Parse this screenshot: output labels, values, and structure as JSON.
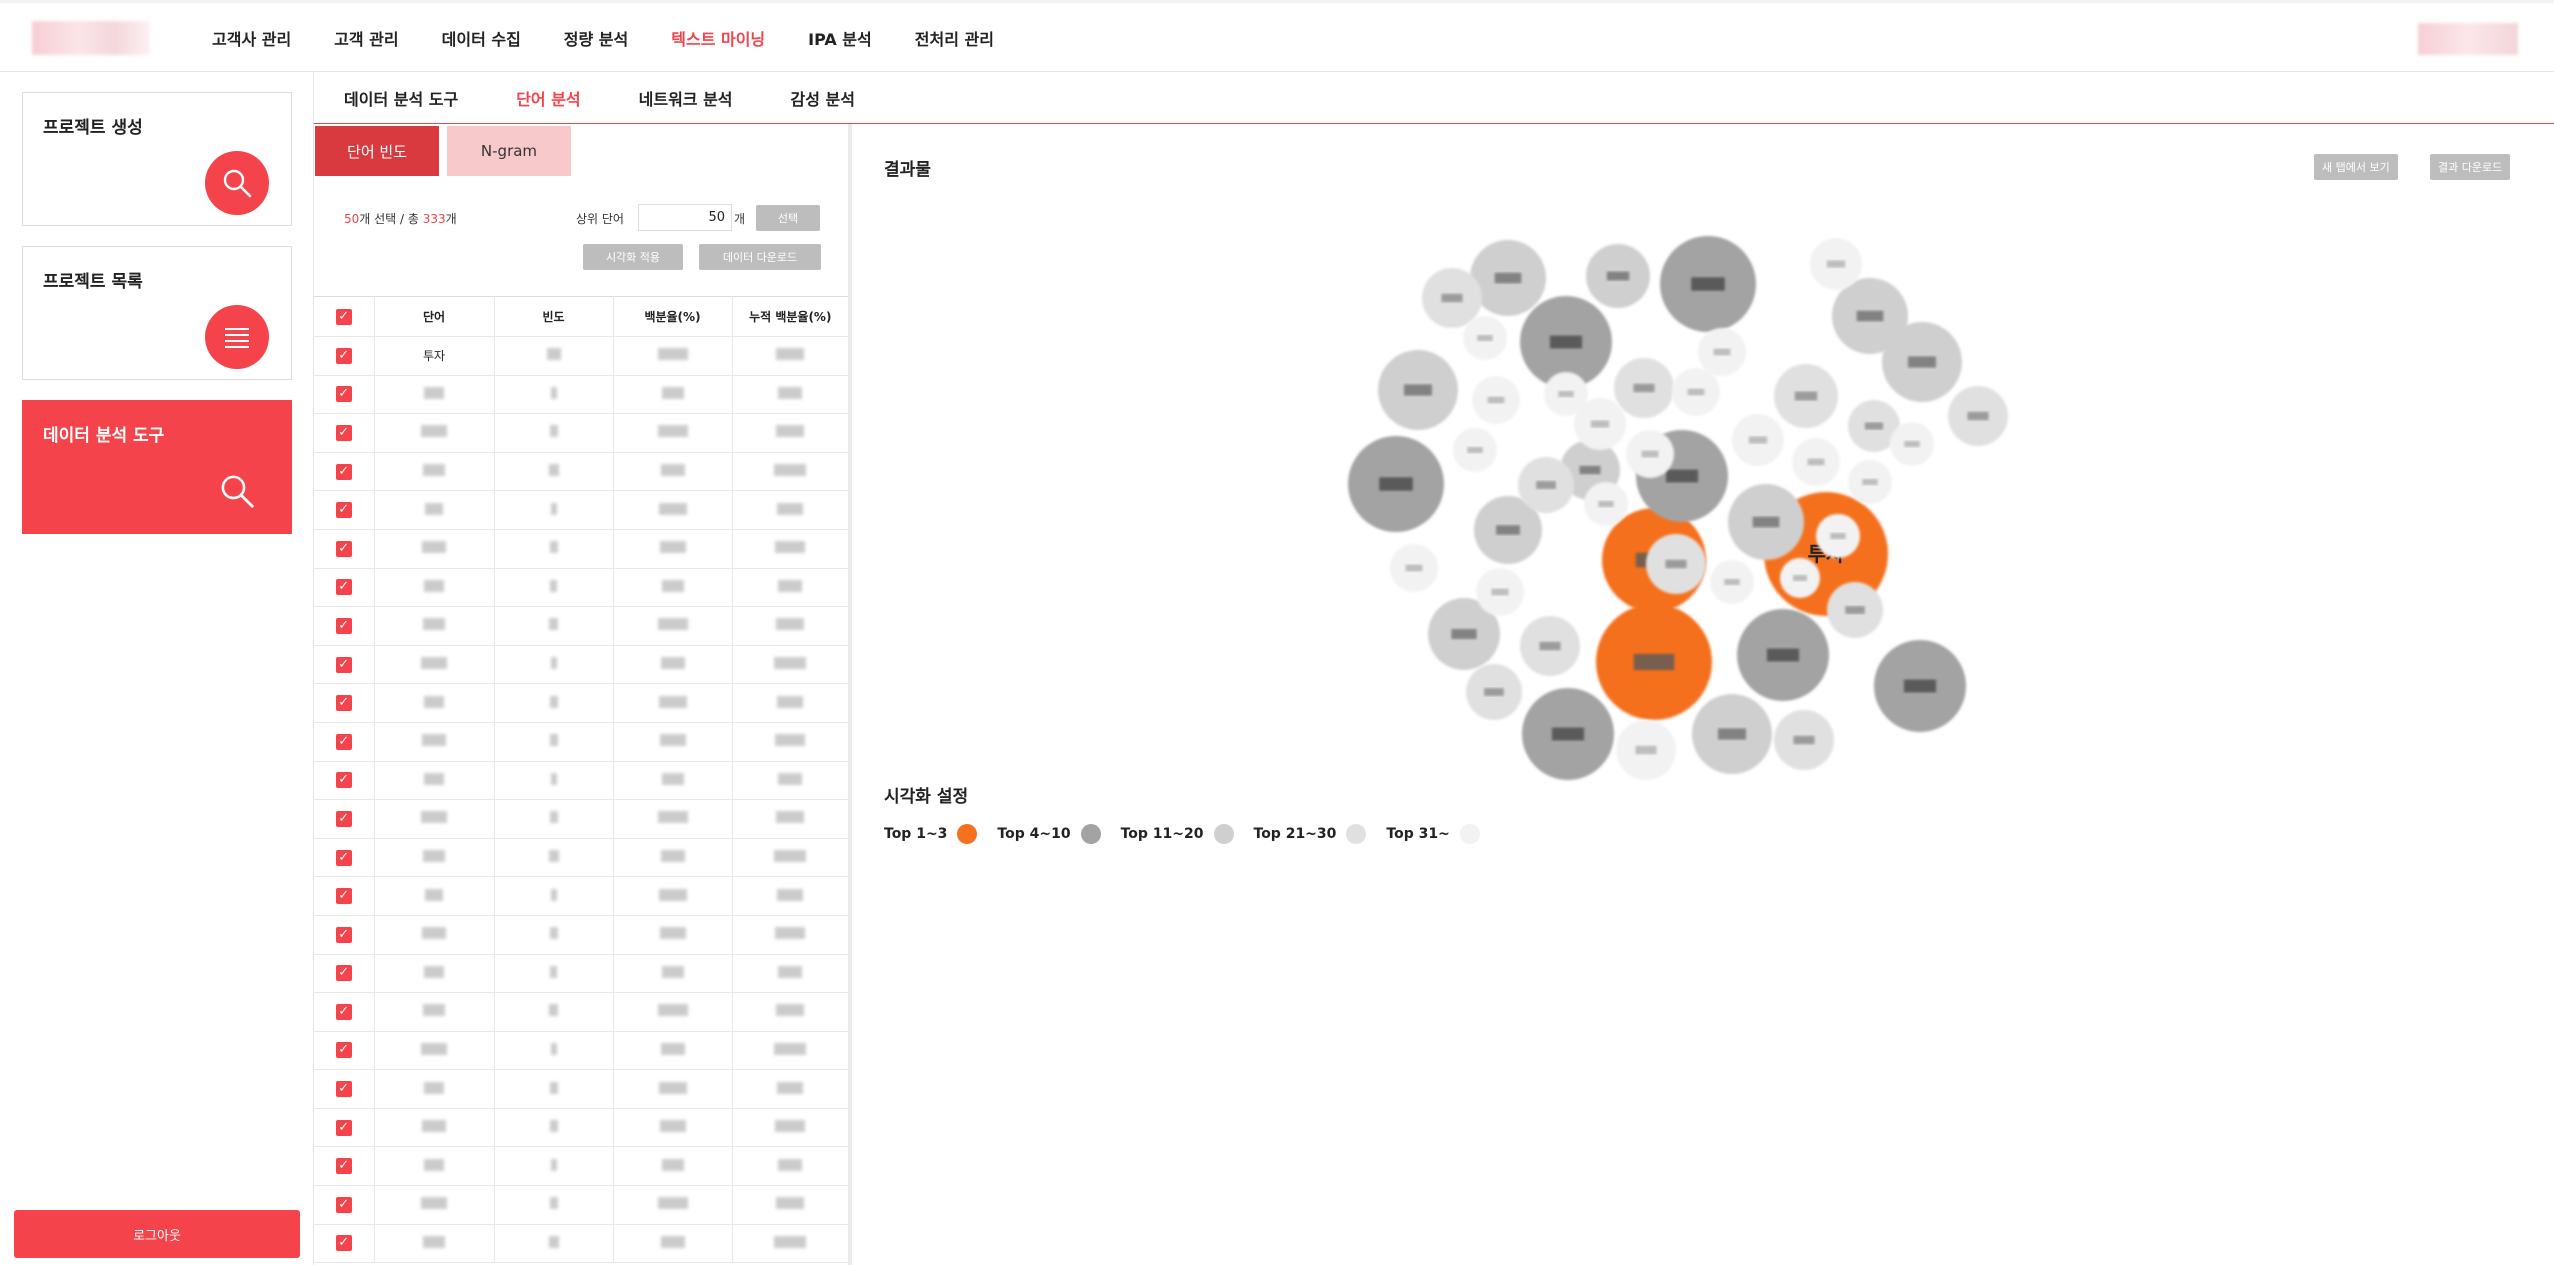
{
  "nav": {
    "items": [
      {
        "label": "고객사 관리",
        "active": false
      },
      {
        "label": "고객 관리",
        "active": false
      },
      {
        "label": "데이터 수집",
        "active": false
      },
      {
        "label": "정량 분석",
        "active": false
      },
      {
        "label": "텍스트 마이닝",
        "active": true
      },
      {
        "label": "IPA 분석",
        "active": false
      },
      {
        "label": "전처리 관리",
        "active": false
      }
    ]
  },
  "sidebar": {
    "cards": [
      {
        "label": "프로젝트 생성",
        "icon": "search-icon"
      },
      {
        "label": "프로젝트 목록",
        "icon": "list-icon"
      },
      {
        "label": "데이터 분석 도구",
        "icon": "search-icon",
        "active": true
      }
    ],
    "logout_label": "로그아웃"
  },
  "subtabs": [
    {
      "label": "데이터 분석 도구",
      "active": false
    },
    {
      "label": "단어 분석",
      "active": true
    },
    {
      "label": "네트워크 분석",
      "active": false
    },
    {
      "label": "감성 분석",
      "active": false
    }
  ],
  "panel": {
    "mode_active": "단어 빈도",
    "mode_inactive": "N-gram",
    "selected_count": "50",
    "selected_suffix": "개 선택 / 총 ",
    "total_count": "333",
    "total_suffix": "개",
    "top_label": "상위 단어",
    "top_value": "50",
    "top_unit": "개",
    "select_button": "선택",
    "apply_button": "시각화 적용",
    "download_button": "데이터 다운로드",
    "columns": [
      "단어",
      "빈도",
      "백분율(%)",
      "누적 백분율(%)"
    ],
    "first_word": "투자",
    "row_count": 24
  },
  "result": {
    "title": "결과물",
    "open_new_tab": "새 탭에서 보기",
    "download_result": "결과 다운로드",
    "top_word": "투자"
  },
  "visualization": {
    "title": "시각화 설정",
    "legend": [
      {
        "label": "Top 1~3",
        "color": "#f5701f"
      },
      {
        "label": "Top 4~10",
        "color": "#a3a3a3"
      },
      {
        "label": "Top 11~20",
        "color": "#cfcfcf"
      },
      {
        "label": "Top 21~30",
        "color": "#e0e0e0"
      },
      {
        "label": "Top 31~",
        "color": "#f2f2f2"
      }
    ]
  },
  "colors": {
    "accent": "#f4434a",
    "orange": "#f5701f"
  }
}
